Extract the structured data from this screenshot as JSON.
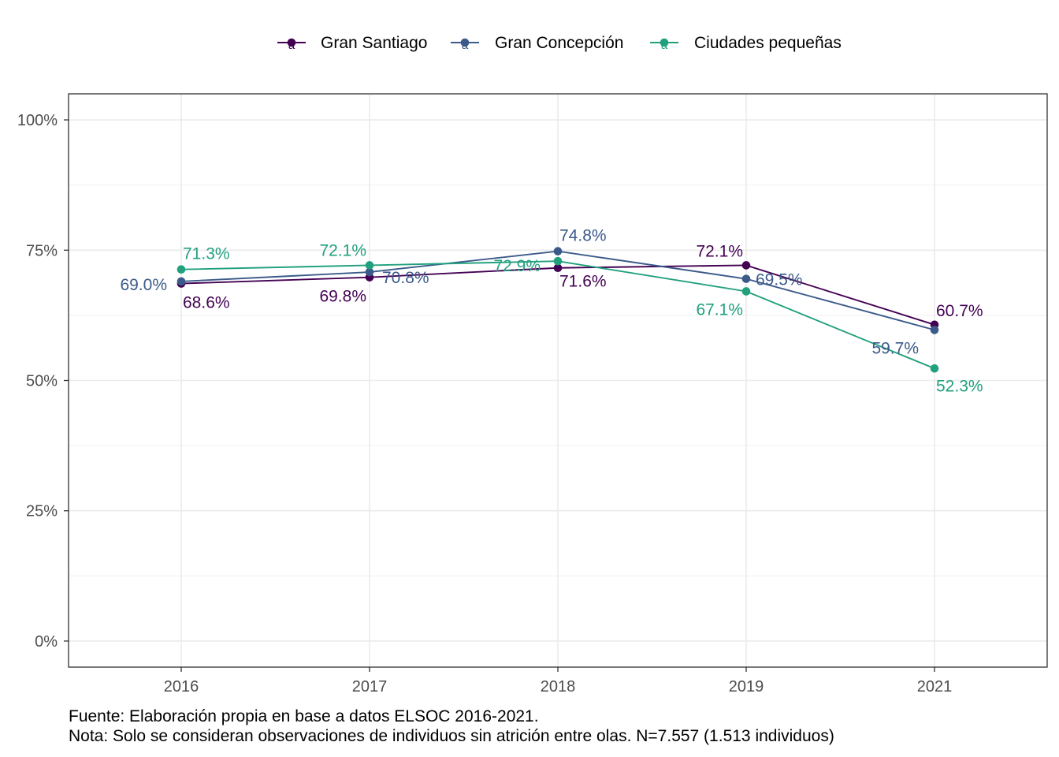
{
  "chart_data": {
    "type": "line",
    "x": [
      "2016",
      "2017",
      "2018",
      "2019",
      "2021"
    ],
    "series": [
      {
        "name": "Gran Santiago",
        "color": "#440154",
        "values": [
          68.6,
          69.8,
          71.6,
          72.1,
          60.7
        ],
        "labels": [
          "68.6%",
          "69.8%",
          "71.6%",
          "72.1%",
          "60.7%"
        ]
      },
      {
        "name": "Gran Concepción",
        "color": "#3B5A8A",
        "values": [
          69.0,
          70.8,
          74.8,
          69.5,
          59.7
        ],
        "labels": [
          "69.0%",
          "70.8%",
          "74.8%",
          "69.5%",
          "59.7%"
        ]
      },
      {
        "name": "Ciudades pequeñas",
        "color": "#21A07E",
        "values": [
          71.3,
          72.1,
          72.9,
          67.1,
          52.3
        ],
        "labels": [
          "71.3%",
          "72.1%",
          "72.9%",
          "67.1%",
          "52.3%"
        ]
      }
    ],
    "yticks": [
      0,
      25,
      50,
      75,
      100
    ],
    "ytick_labels": [
      "0%",
      "25%",
      "50%",
      "75%",
      "100%"
    ],
    "ylim": [
      -5,
      105
    ],
    "grid": true,
    "legend_position": "top",
    "legend_glyph": "a"
  },
  "captions": {
    "source": "Fuente: Elaboración propia en base a datos ELSOC 2016-2021.",
    "note": "Nota: Solo se consideran observaciones de individuos sin atrición entre olas. N=7.557 (1.513 individuos)"
  }
}
